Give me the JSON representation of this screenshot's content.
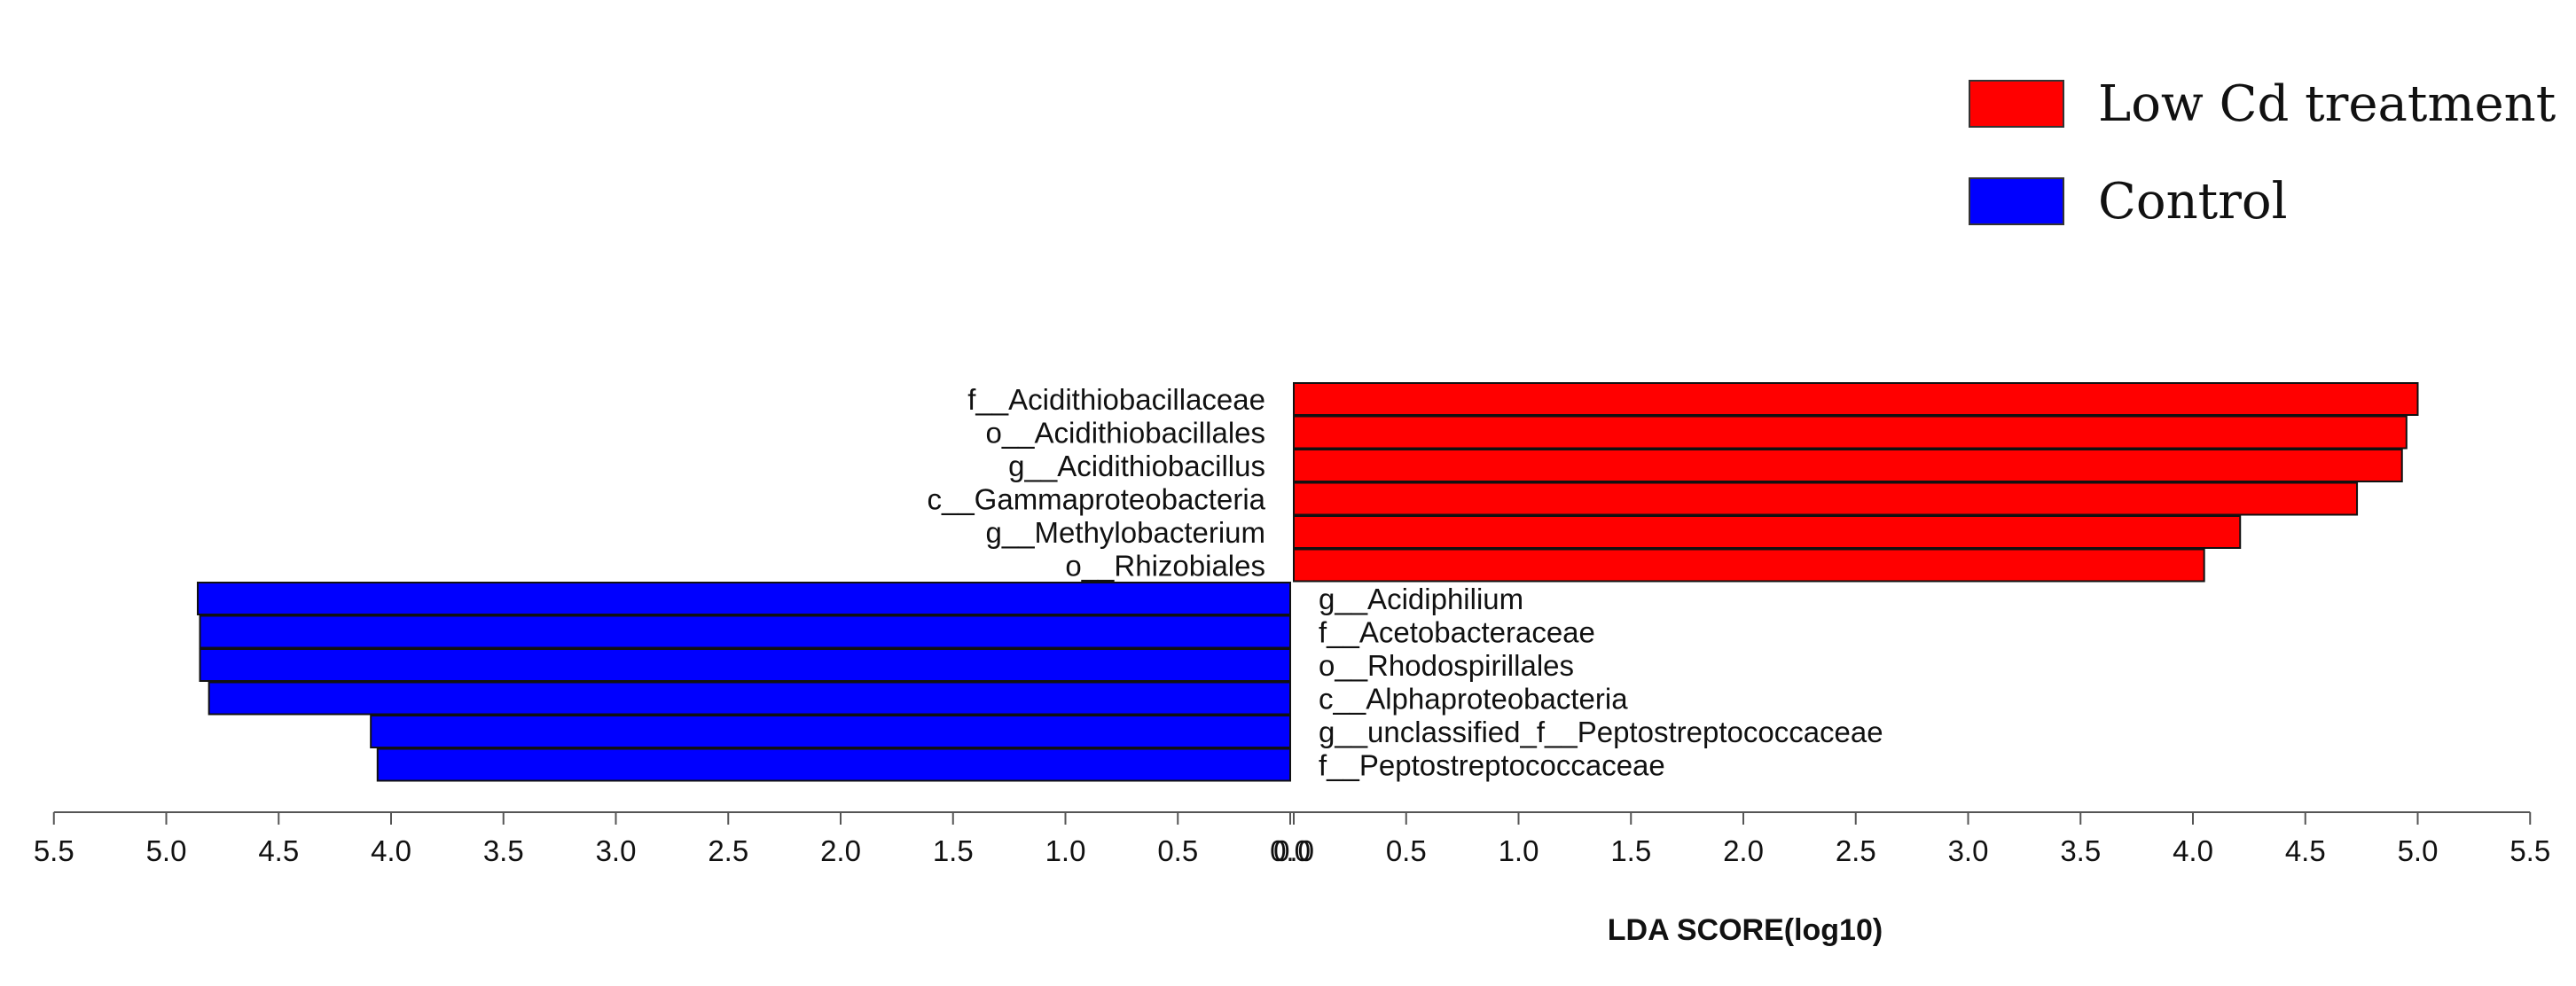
{
  "chart_data": {
    "type": "bar",
    "orientation": "horizontal-diverging",
    "xlabel": "LDA SCORE(log10)",
    "xlim": [
      -5.5,
      5.5
    ],
    "x_ticks": [
      "5.5",
      "5.0",
      "4.5",
      "4.0",
      "3.5",
      "3.0",
      "2.5",
      "2.0",
      "1.5",
      "1.0",
      "0.5",
      "0.0",
      "0.0",
      "0.5",
      "1.0",
      "1.5",
      "2.0",
      "2.5",
      "3.0",
      "3.5",
      "4.0",
      "4.5",
      "5.0",
      "5.5"
    ],
    "legend": {
      "placement": "top-right",
      "items": [
        {
          "label": "Low Cd treatment",
          "color": "#ff0000"
        },
        {
          "label": "Control",
          "color": "#0000ff"
        }
      ]
    },
    "series": [
      {
        "name": "Low Cd treatment",
        "color": "#ff0000",
        "categories": [
          "f__Acidithiobacillaceae",
          "o__Acidithiobacillales",
          "g__Acidithiobacillus",
          "c__Gammaproteobacteria",
          "g__Methylobacterium",
          "o__Rhizobiales"
        ],
        "values": [
          5.0,
          4.95,
          4.93,
          4.73,
          4.21,
          4.05
        ]
      },
      {
        "name": "Control",
        "color": "#0000ff",
        "categories": [
          "g__Acidiphilium",
          "f__Acetobacteraceae",
          "o__Rhodospirillales",
          "c__Alphaproteobacteria",
          "g__unclassified_f__Peptostreptococcaceae",
          "f__Peptostreptococcaceae"
        ],
        "values": [
          4.86,
          4.85,
          4.85,
          4.81,
          4.09,
          4.06
        ]
      }
    ]
  }
}
